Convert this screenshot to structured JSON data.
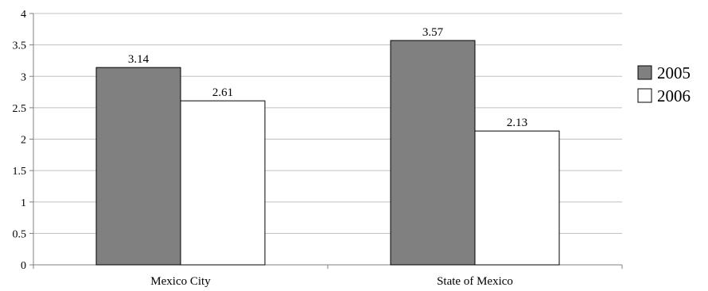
{
  "chart_data": {
    "type": "bar",
    "categories": [
      "Mexico City",
      "State of Mexico"
    ],
    "series": [
      {
        "name": "2005",
        "values": [
          3.14,
          3.57
        ],
        "color": "#808080"
      },
      {
        "name": "2006",
        "values": [
          2.61,
          2.13
        ],
        "color": "#ffffff"
      }
    ],
    "data_labels": [
      [
        "3.14",
        "3.57"
      ],
      [
        "2.61",
        "2.13"
      ]
    ],
    "yticks": [
      "0",
      "0.5",
      "1",
      "1.5",
      "2",
      "2.5",
      "3",
      "3.5",
      "4"
    ],
    "ylim": [
      0,
      4
    ],
    "title": "",
    "xlabel": "",
    "ylabel": "",
    "grid": true,
    "legend": "right"
  },
  "colors": {
    "grid": "#c0c0c0",
    "axis": "#808080",
    "bar_stroke": "#000000"
  }
}
